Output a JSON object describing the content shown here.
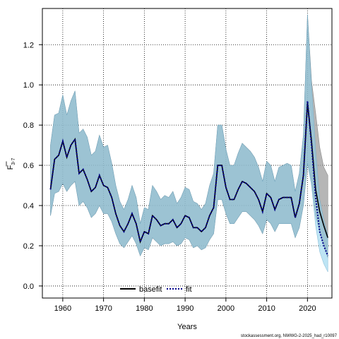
{
  "chart_data": {
    "type": "line",
    "xlabel": "Years",
    "ylabel_main": "F",
    "ylabel_sub": "3-7",
    "xlim": [
      1955,
      2026
    ],
    "ylim": [
      -0.06,
      1.38
    ],
    "xticks": [
      1960,
      1970,
      1980,
      1990,
      2000,
      2010,
      2020
    ],
    "yticks": [
      0.0,
      0.2,
      0.4,
      0.6,
      0.8,
      1.0,
      1.2
    ],
    "ytick_labels": [
      "0.0",
      "0.2",
      "0.4",
      "0.6",
      "0.8",
      "1.0",
      "1.2"
    ],
    "grid": true,
    "legend_position": "bottom-center",
    "credit": "stockassessment.org, NWWG-2-2025_had_r10097",
    "colors": {
      "basefit_band": "#9e9e9e",
      "basefit_line": "#000000",
      "fit_band": "#87ceeb",
      "fit_line": "#00008b",
      "overlap_band": "#a3c2d4"
    },
    "x": [
      1957,
      1958,
      1959,
      1960,
      1961,
      1962,
      1963,
      1964,
      1965,
      1966,
      1967,
      1968,
      1969,
      1970,
      1971,
      1972,
      1973,
      1974,
      1975,
      1976,
      1977,
      1978,
      1979,
      1980,
      1981,
      1982,
      1983,
      1984,
      1985,
      1986,
      1987,
      1988,
      1989,
      1990,
      1991,
      1992,
      1993,
      1994,
      1995,
      1996,
      1997,
      1998,
      1999,
      2000,
      2001,
      2002,
      2003,
      2004,
      2005,
      2006,
      2007,
      2008,
      2009,
      2010,
      2011,
      2012,
      2013,
      2014,
      2015,
      2016,
      2017,
      2018,
      2019,
      2020,
      2021,
      2022,
      2023,
      2024,
      2025
    ],
    "series": [
      {
        "name": "basefit",
        "values": [
          0.48,
          0.63,
          0.65,
          0.72,
          0.64,
          0.7,
          0.73,
          0.56,
          0.58,
          0.53,
          0.47,
          0.49,
          0.55,
          0.5,
          0.49,
          0.44,
          0.36,
          0.3,
          0.27,
          0.31,
          0.36,
          0.31,
          0.22,
          0.27,
          0.26,
          0.35,
          0.33,
          0.3,
          0.31,
          0.31,
          0.33,
          0.29,
          0.31,
          0.35,
          0.34,
          0.29,
          0.29,
          0.27,
          0.29,
          0.35,
          0.39,
          0.6,
          0.6,
          0.49,
          0.43,
          0.43,
          0.48,
          0.52,
          0.51,
          0.49,
          0.47,
          0.43,
          0.37,
          0.46,
          0.44,
          0.38,
          0.43,
          0.44,
          0.44,
          0.44,
          0.34,
          0.41,
          0.55,
          0.91,
          0.72,
          0.48,
          0.37,
          0.3,
          0.24
        ],
        "lower": [
          0.35,
          0.46,
          0.47,
          0.51,
          0.47,
          0.5,
          0.52,
          0.4,
          0.42,
          0.39,
          0.34,
          0.36,
          0.4,
          0.36,
          0.36,
          0.32,
          0.26,
          0.21,
          0.19,
          0.22,
          0.25,
          0.21,
          0.15,
          0.19,
          0.18,
          0.24,
          0.22,
          0.2,
          0.21,
          0.21,
          0.22,
          0.2,
          0.21,
          0.24,
          0.23,
          0.19,
          0.2,
          0.18,
          0.19,
          0.23,
          0.26,
          0.43,
          0.43,
          0.36,
          0.31,
          0.31,
          0.34,
          0.37,
          0.37,
          0.35,
          0.33,
          0.3,
          0.26,
          0.33,
          0.31,
          0.27,
          0.31,
          0.31,
          0.31,
          0.31,
          0.24,
          0.29,
          0.4,
          0.61,
          0.52,
          0.35,
          0.27,
          0.2,
          0.14
        ],
        "upper": [
          0.7,
          0.85,
          0.86,
          0.95,
          0.85,
          0.92,
          0.97,
          0.76,
          0.78,
          0.74,
          0.65,
          0.67,
          0.75,
          0.69,
          0.7,
          0.61,
          0.5,
          0.42,
          0.38,
          0.43,
          0.5,
          0.44,
          0.31,
          0.39,
          0.38,
          0.5,
          0.47,
          0.43,
          0.45,
          0.44,
          0.47,
          0.41,
          0.44,
          0.49,
          0.48,
          0.42,
          0.41,
          0.38,
          0.41,
          0.5,
          0.56,
          0.8,
          0.8,
          0.68,
          0.6,
          0.6,
          0.66,
          0.71,
          0.69,
          0.67,
          0.64,
          0.59,
          0.52,
          0.62,
          0.6,
          0.52,
          0.59,
          0.6,
          0.61,
          0.6,
          0.47,
          0.56,
          0.75,
          1.35,
          1.02,
          0.86,
          0.69,
          0.59,
          0.55
        ]
      },
      {
        "name": "fit",
        "values": [
          0.48,
          0.63,
          0.65,
          0.72,
          0.64,
          0.7,
          0.73,
          0.56,
          0.58,
          0.53,
          0.47,
          0.49,
          0.55,
          0.5,
          0.49,
          0.44,
          0.36,
          0.3,
          0.27,
          0.31,
          0.36,
          0.31,
          0.22,
          0.27,
          0.26,
          0.35,
          0.33,
          0.3,
          0.31,
          0.31,
          0.33,
          0.29,
          0.31,
          0.35,
          0.34,
          0.29,
          0.29,
          0.27,
          0.29,
          0.35,
          0.39,
          0.6,
          0.6,
          0.49,
          0.43,
          0.43,
          0.48,
          0.52,
          0.51,
          0.49,
          0.47,
          0.43,
          0.37,
          0.46,
          0.44,
          0.38,
          0.43,
          0.44,
          0.44,
          0.44,
          0.34,
          0.41,
          0.55,
          0.92,
          0.7,
          0.44,
          0.27,
          0.2,
          0.15
        ],
        "lower": [
          0.35,
          0.46,
          0.47,
          0.51,
          0.47,
          0.5,
          0.52,
          0.4,
          0.42,
          0.39,
          0.34,
          0.36,
          0.4,
          0.36,
          0.36,
          0.32,
          0.26,
          0.21,
          0.19,
          0.22,
          0.25,
          0.21,
          0.15,
          0.19,
          0.18,
          0.24,
          0.22,
          0.2,
          0.21,
          0.21,
          0.22,
          0.2,
          0.21,
          0.24,
          0.23,
          0.19,
          0.2,
          0.18,
          0.19,
          0.23,
          0.26,
          0.43,
          0.43,
          0.36,
          0.31,
          0.31,
          0.34,
          0.37,
          0.37,
          0.35,
          0.33,
          0.3,
          0.26,
          0.33,
          0.31,
          0.27,
          0.31,
          0.31,
          0.31,
          0.31,
          0.24,
          0.29,
          0.4,
          0.61,
          0.5,
          0.3,
          0.17,
          0.11,
          0.07
        ],
        "upper": [
          0.7,
          0.85,
          0.86,
          0.95,
          0.85,
          0.92,
          0.97,
          0.76,
          0.78,
          0.74,
          0.65,
          0.67,
          0.75,
          0.69,
          0.7,
          0.61,
          0.5,
          0.42,
          0.38,
          0.43,
          0.5,
          0.44,
          0.31,
          0.39,
          0.38,
          0.5,
          0.47,
          0.43,
          0.45,
          0.44,
          0.47,
          0.41,
          0.44,
          0.49,
          0.48,
          0.42,
          0.41,
          0.38,
          0.41,
          0.5,
          0.56,
          0.8,
          0.8,
          0.68,
          0.6,
          0.6,
          0.66,
          0.71,
          0.69,
          0.67,
          0.64,
          0.59,
          0.52,
          0.62,
          0.6,
          0.52,
          0.59,
          0.6,
          0.61,
          0.6,
          0.47,
          0.56,
          0.75,
          1.35,
          1.0,
          0.68,
          0.43,
          0.33,
          0.25
        ]
      }
    ]
  }
}
